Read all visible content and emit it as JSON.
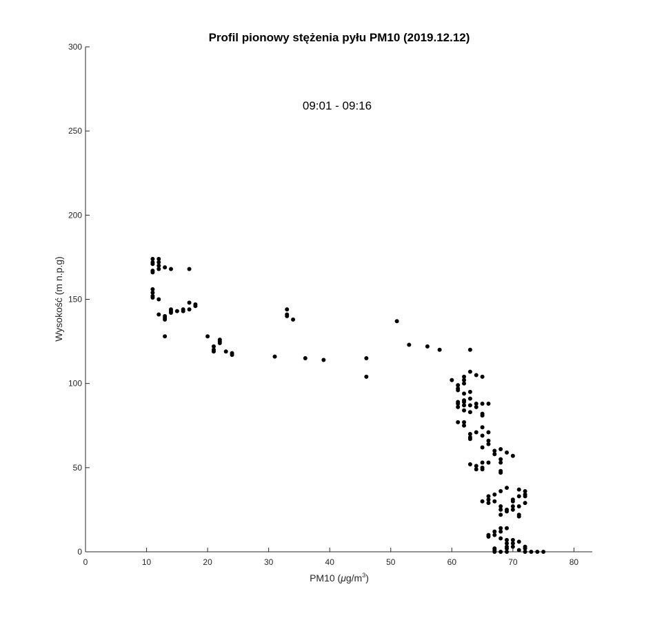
{
  "chart_data": {
    "type": "scatter",
    "title": "Profil pionowy stężenia pyłu PM10 (2019.12.12)",
    "annotation": "09:01 - 09:16",
    "xlabel": {
      "pre": "PM10 (",
      "mu": "μ",
      "mid": "g/m",
      "sup": "3",
      "post": ")"
    },
    "ylabel": "Wysokość (m n.p.g)",
    "xlim": [
      0,
      83
    ],
    "ylim": [
      0,
      300
    ],
    "xticks": [
      0,
      10,
      20,
      30,
      40,
      50,
      60,
      70,
      80
    ],
    "yticks": [
      0,
      50,
      100,
      150,
      200,
      250,
      300
    ],
    "marker_color": "#000000",
    "points": [
      [
        11,
        174
      ],
      [
        11,
        172
      ],
      [
        11,
        171
      ],
      [
        11,
        167
      ],
      [
        11,
        166
      ],
      [
        12,
        174
      ],
      [
        12,
        172
      ],
      [
        12,
        170
      ],
      [
        12,
        168
      ],
      [
        13,
        169
      ],
      [
        14,
        168
      ],
      [
        17,
        168
      ],
      [
        11,
        156
      ],
      [
        11,
        154
      ],
      [
        11,
        152
      ],
      [
        11,
        151
      ],
      [
        12,
        150
      ],
      [
        12,
        141
      ],
      [
        13,
        140
      ],
      [
        13,
        139
      ],
      [
        13,
        138
      ],
      [
        14,
        144
      ],
      [
        14,
        143
      ],
      [
        14,
        142
      ],
      [
        15,
        143
      ],
      [
        16,
        143
      ],
      [
        16,
        144
      ],
      [
        17,
        144
      ],
      [
        17,
        148
      ],
      [
        18,
        147
      ],
      [
        18,
        146
      ],
      [
        13,
        128
      ],
      [
        20,
        128
      ],
      [
        21,
        122
      ],
      [
        21,
        120
      ],
      [
        21,
        119
      ],
      [
        22,
        126
      ],
      [
        22,
        125
      ],
      [
        22,
        124
      ],
      [
        23,
        119
      ],
      [
        24,
        118
      ],
      [
        24,
        117
      ],
      [
        31,
        116
      ],
      [
        33,
        144
      ],
      [
        33,
        141
      ],
      [
        33,
        140
      ],
      [
        34,
        138
      ],
      [
        36,
        115
      ],
      [
        39,
        114
      ],
      [
        46,
        115
      ],
      [
        46,
        104
      ],
      [
        51,
        137
      ],
      [
        53,
        123
      ],
      [
        56,
        122
      ],
      [
        58,
        120
      ],
      [
        60,
        102
      ],
      [
        61,
        99
      ],
      [
        61,
        97
      ],
      [
        61,
        96
      ],
      [
        61,
        89
      ],
      [
        61,
        88
      ],
      [
        61,
        86
      ],
      [
        61,
        77
      ],
      [
        62,
        104
      ],
      [
        62,
        102
      ],
      [
        62,
        100
      ],
      [
        62,
        94
      ],
      [
        62,
        90
      ],
      [
        62,
        89
      ],
      [
        62,
        87
      ],
      [
        62,
        84
      ],
      [
        62,
        77
      ],
      [
        62,
        75
      ],
      [
        63,
        120
      ],
      [
        63,
        107
      ],
      [
        63,
        95
      ],
      [
        63,
        91
      ],
      [
        63,
        87
      ],
      [
        63,
        83
      ],
      [
        63,
        70
      ],
      [
        63,
        68
      ],
      [
        63,
        67
      ],
      [
        63,
        52
      ],
      [
        64,
        105
      ],
      [
        64,
        88
      ],
      [
        64,
        86
      ],
      [
        64,
        71
      ],
      [
        64,
        51
      ],
      [
        64,
        49
      ],
      [
        65,
        104
      ],
      [
        65,
        88
      ],
      [
        65,
        82
      ],
      [
        65,
        81
      ],
      [
        65,
        74
      ],
      [
        65,
        69
      ],
      [
        65,
        62
      ],
      [
        65,
        53
      ],
      [
        65,
        50
      ],
      [
        65,
        49
      ],
      [
        65,
        30
      ],
      [
        66,
        88
      ],
      [
        66,
        71
      ],
      [
        66,
        66
      ],
      [
        66,
        64
      ],
      [
        66,
        53
      ],
      [
        66,
        33
      ],
      [
        66,
        31
      ],
      [
        66,
        29
      ],
      [
        66,
        10
      ],
      [
        66,
        9
      ],
      [
        67,
        60
      ],
      [
        67,
        58
      ],
      [
        67,
        34
      ],
      [
        67,
        30
      ],
      [
        67,
        12
      ],
      [
        67,
        10
      ],
      [
        67,
        2
      ],
      [
        67,
        1
      ],
      [
        67,
        0
      ],
      [
        68,
        61
      ],
      [
        68,
        55
      ],
      [
        68,
        53
      ],
      [
        68,
        48
      ],
      [
        68,
        47
      ],
      [
        68,
        36
      ],
      [
        68,
        27
      ],
      [
        68,
        25
      ],
      [
        68,
        22
      ],
      [
        68,
        14
      ],
      [
        68,
        12
      ],
      [
        68,
        8
      ],
      [
        68,
        0
      ],
      [
        69,
        59
      ],
      [
        69,
        38
      ],
      [
        69,
        25
      ],
      [
        69,
        24
      ],
      [
        69,
        14
      ],
      [
        69,
        7
      ],
      [
        69,
        5
      ],
      [
        69,
        3
      ],
      [
        69,
        2
      ],
      [
        69,
        0
      ],
      [
        70,
        57
      ],
      [
        70,
        31
      ],
      [
        70,
        30
      ],
      [
        70,
        27
      ],
      [
        70,
        25
      ],
      [
        70,
        7
      ],
      [
        70,
        5
      ],
      [
        70,
        3
      ],
      [
        71,
        37
      ],
      [
        71,
        33
      ],
      [
        71,
        27
      ],
      [
        71,
        22
      ],
      [
        71,
        21
      ],
      [
        71,
        6
      ],
      [
        71,
        1
      ],
      [
        72,
        36
      ],
      [
        72,
        34
      ],
      [
        72,
        33
      ],
      [
        72,
        29
      ],
      [
        72,
        3
      ],
      [
        72,
        2
      ],
      [
        72,
        0
      ],
      [
        73,
        0
      ],
      [
        74,
        0
      ],
      [
        75,
        0
      ]
    ]
  }
}
